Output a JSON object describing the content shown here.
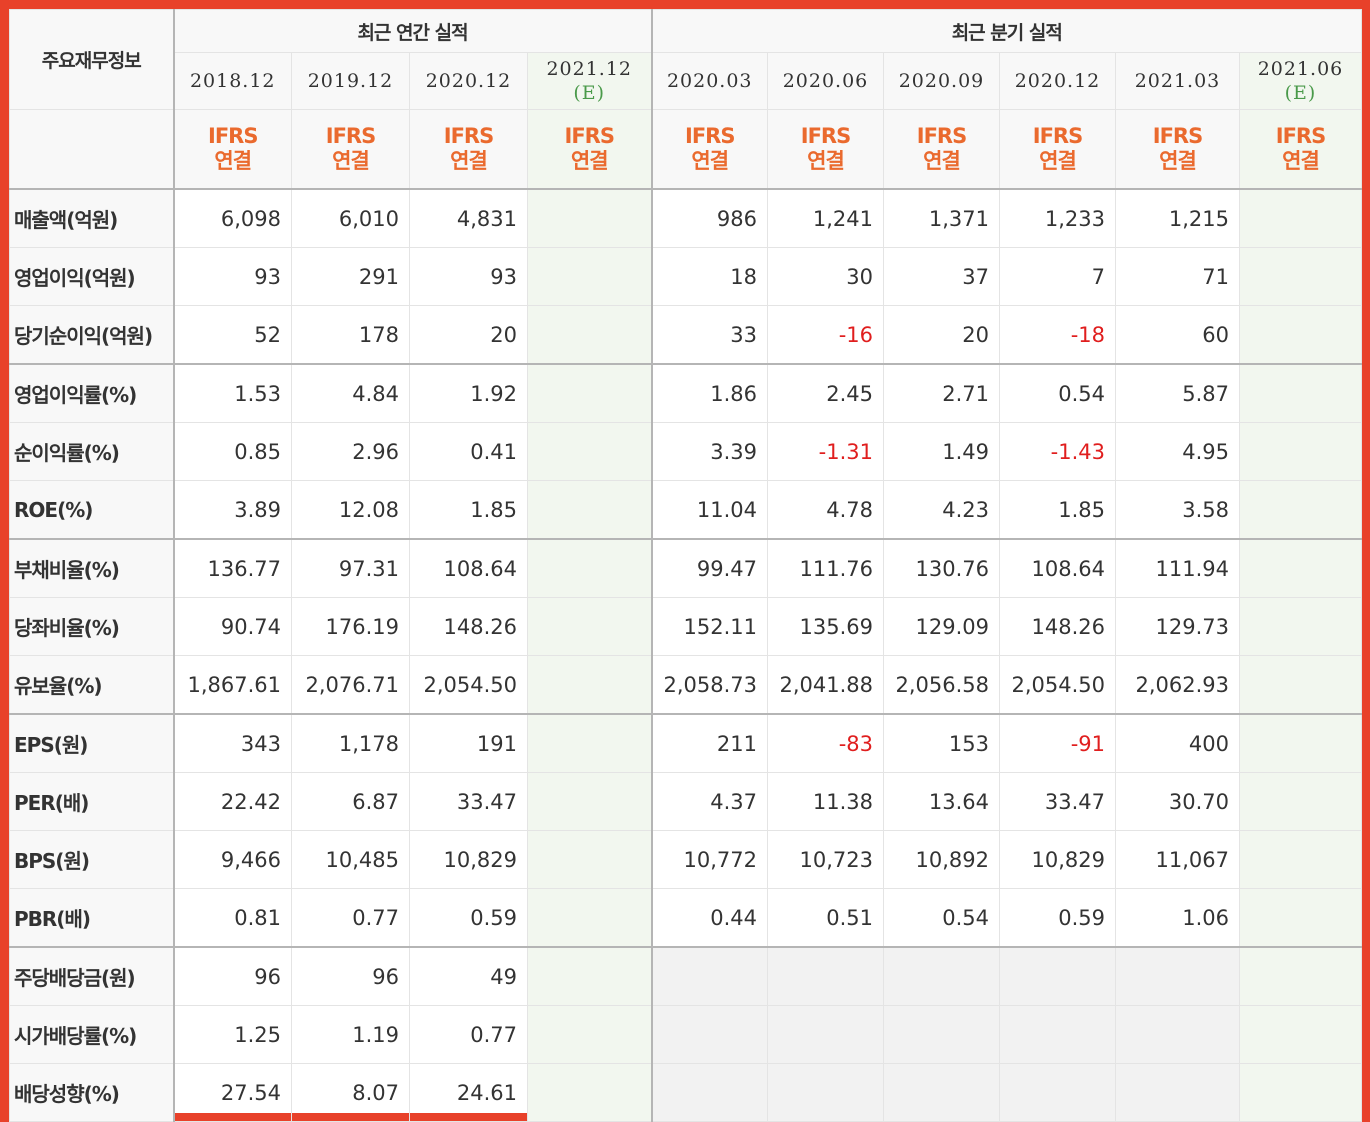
{
  "header": {
    "main_label": "주요재무정보",
    "annual_label": "최근 연간 실적",
    "quarterly_label": "최근 분기 실적",
    "estimate_mark": "(E)",
    "annual_periods": [
      "2018.12",
      "2019.12",
      "2020.12",
      "2021.12"
    ],
    "quarterly_periods": [
      "2020.03",
      "2020.06",
      "2020.09",
      "2020.12",
      "2021.03",
      "2021.06"
    ],
    "accounting_basis_line1": "IFRS",
    "accounting_basis_line2": "연결"
  },
  "rows": [
    {
      "label": "매출액(억원)",
      "values": [
        "6,098",
        "6,010",
        "4,831",
        "",
        "986",
        "1,241",
        "1,371",
        "1,233",
        "1,215",
        ""
      ]
    },
    {
      "label": "영업이익(억원)",
      "values": [
        "93",
        "291",
        "93",
        "",
        "18",
        "30",
        "37",
        "7",
        "71",
        ""
      ]
    },
    {
      "label": "당기순이익(억원)",
      "values": [
        "52",
        "178",
        "20",
        "",
        "33",
        "-16",
        "20",
        "-18",
        "60",
        ""
      ]
    },
    {
      "label": "영업이익률(%)",
      "values": [
        "1.53",
        "4.84",
        "1.92",
        "",
        "1.86",
        "2.45",
        "2.71",
        "0.54",
        "5.87",
        ""
      ]
    },
    {
      "label": "순이익률(%)",
      "values": [
        "0.85",
        "2.96",
        "0.41",
        "",
        "3.39",
        "-1.31",
        "1.49",
        "-1.43",
        "4.95",
        ""
      ]
    },
    {
      "label": "ROE(%)",
      "values": [
        "3.89",
        "12.08",
        "1.85",
        "",
        "11.04",
        "4.78",
        "4.23",
        "1.85",
        "3.58",
        ""
      ]
    },
    {
      "label": "부채비율(%)",
      "values": [
        "136.77",
        "97.31",
        "108.64",
        "",
        "99.47",
        "111.76",
        "130.76",
        "108.64",
        "111.94",
        ""
      ]
    },
    {
      "label": "당좌비율(%)",
      "values": [
        "90.74",
        "176.19",
        "148.26",
        "",
        "152.11",
        "135.69",
        "129.09",
        "148.26",
        "129.73",
        ""
      ]
    },
    {
      "label": "유보율(%)",
      "values": [
        "1,867.61",
        "2,076.71",
        "2,054.50",
        "",
        "2,058.73",
        "2,041.88",
        "2,056.58",
        "2,054.50",
        "2,062.93",
        ""
      ]
    },
    {
      "label": "EPS(원)",
      "values": [
        "343",
        "1,178",
        "191",
        "",
        "211",
        "-83",
        "153",
        "-91",
        "400",
        ""
      ]
    },
    {
      "label": "PER(배)",
      "values": [
        "22.42",
        "6.87",
        "33.47",
        "",
        "4.37",
        "11.38",
        "13.64",
        "33.47",
        "30.70",
        ""
      ]
    },
    {
      "label": "BPS(원)",
      "values": [
        "9,466",
        "10,485",
        "10,829",
        "",
        "10,772",
        "10,723",
        "10,892",
        "10,829",
        "11,067",
        ""
      ]
    },
    {
      "label": "PBR(배)",
      "values": [
        "0.81",
        "0.77",
        "0.59",
        "",
        "0.44",
        "0.51",
        "0.54",
        "0.59",
        "1.06",
        ""
      ]
    },
    {
      "label": "주당배당금(원)",
      "values": [
        "96",
        "96",
        "49",
        "",
        "",
        "",
        "",
        "",
        "",
        ""
      ]
    },
    {
      "label": "시가배당률(%)",
      "values": [
        "1.25",
        "1.19",
        "0.77",
        "",
        "",
        "",
        "",
        "",
        "",
        ""
      ]
    },
    {
      "label": "배당성향(%)",
      "values": [
        "27.54",
        "8.07",
        "24.61",
        "",
        "",
        "",
        "",
        "",
        "",
        ""
      ]
    }
  ],
  "colors": {
    "frame_border": "#e8412a",
    "ifrs_text": "#ea6a2e",
    "estimate_text": "#4a9a4a",
    "estimate_column_bg": "#f2f7ef",
    "negative_value": "#e01e1e"
  }
}
